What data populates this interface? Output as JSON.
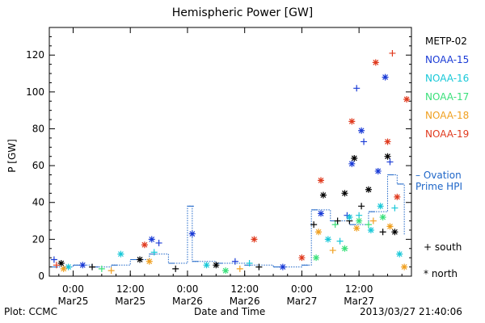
{
  "chart_data": {
    "type": "scatter",
    "title": "Hemispheric Power [GW]",
    "ylabel": "P [GW]",
    "xlabel": "Date and Time",
    "ylim": [
      0,
      135
    ],
    "xlim": [
      "2013-03-24T19:00",
      "2013-03-27T23:00"
    ],
    "y_ticks": [
      0,
      20,
      40,
      60,
      80,
      100,
      120
    ],
    "x_ticks": [
      {
        "t": "2013-03-25T00:00",
        "line1": "0:00",
        "line2": "Mar25"
      },
      {
        "t": "2013-03-25T12:00",
        "line1": "12:00",
        "line2": "Mar25"
      },
      {
        "t": "2013-03-26T00:00",
        "line1": "0:00",
        "line2": "Mar26"
      },
      {
        "t": "2013-03-26T12:00",
        "line1": "12:00",
        "line2": "Mar26"
      },
      {
        "t": "2013-03-27T00:00",
        "line1": "0:00",
        "line2": "Mar27"
      },
      {
        "t": "2013-03-27T12:00",
        "line1": "12:00",
        "line2": "Mar27"
      }
    ],
    "markers": {
      "south": "+",
      "north": "*"
    },
    "series": [
      {
        "name": "METP-02",
        "color": "#000000",
        "points": [
          {
            "t": "2013-03-24T21:30",
            "v": 7,
            "h": "north"
          },
          {
            "t": "2013-03-25T04:00",
            "v": 5,
            "h": "south"
          },
          {
            "t": "2013-03-25T14:00",
            "v": 9,
            "h": "north"
          },
          {
            "t": "2013-03-25T21:30",
            "v": 4,
            "h": "south"
          },
          {
            "t": "2013-03-26T06:00",
            "v": 6,
            "h": "north"
          },
          {
            "t": "2013-03-26T15:00",
            "v": 5,
            "h": "south"
          },
          {
            "t": "2013-03-27T02:30",
            "v": 28,
            "h": "south"
          },
          {
            "t": "2013-03-27T04:30",
            "v": 44,
            "h": "north"
          },
          {
            "t": "2013-03-27T07:30",
            "v": 30,
            "h": "south"
          },
          {
            "t": "2013-03-27T09:00",
            "v": 45,
            "h": "north"
          },
          {
            "t": "2013-03-27T10:00",
            "v": 30,
            "h": "south"
          },
          {
            "t": "2013-03-27T11:00",
            "v": 64,
            "h": "north"
          },
          {
            "t": "2013-03-27T12:30",
            "v": 38,
            "h": "south"
          },
          {
            "t": "2013-03-27T14:00",
            "v": 47,
            "h": "north"
          },
          {
            "t": "2013-03-27T17:00",
            "v": 24,
            "h": "south"
          },
          {
            "t": "2013-03-27T18:00",
            "v": 65,
            "h": "north"
          },
          {
            "t": "2013-03-27T19:30",
            "v": 24,
            "h": "north"
          }
        ]
      },
      {
        "name": "NOAA-15",
        "color": "#1a3bd6",
        "points": [
          {
            "t": "2013-03-24T20:00",
            "v": 9,
            "h": "south"
          },
          {
            "t": "2013-03-25T02:00",
            "v": 6,
            "h": "north"
          },
          {
            "t": "2013-03-25T16:30",
            "v": 20,
            "h": "north"
          },
          {
            "t": "2013-03-25T18:00",
            "v": 18,
            "h": "south"
          },
          {
            "t": "2013-03-26T01:00",
            "v": 23,
            "h": "north"
          },
          {
            "t": "2013-03-26T10:00",
            "v": 8,
            "h": "south"
          },
          {
            "t": "2013-03-26T20:00",
            "v": 5,
            "h": "north"
          },
          {
            "t": "2013-03-27T04:00",
            "v": 34,
            "h": "north"
          },
          {
            "t": "2013-03-27T09:30",
            "v": 33,
            "h": "south"
          },
          {
            "t": "2013-03-27T10:30",
            "v": 61,
            "h": "north"
          },
          {
            "t": "2013-03-27T11:30",
            "v": 102,
            "h": "south"
          },
          {
            "t": "2013-03-27T12:30",
            "v": 79,
            "h": "north"
          },
          {
            "t": "2013-03-27T13:00",
            "v": 73,
            "h": "south"
          },
          {
            "t": "2013-03-27T16:00",
            "v": 57,
            "h": "north"
          },
          {
            "t": "2013-03-27T17:30",
            "v": 108,
            "h": "north"
          },
          {
            "t": "2013-03-27T18:30",
            "v": 62,
            "h": "south"
          }
        ]
      },
      {
        "name": "NOAA-16",
        "color": "#18c8d8",
        "points": [
          {
            "t": "2013-03-24T23:00",
            "v": 5,
            "h": "north"
          },
          {
            "t": "2013-03-25T10:00",
            "v": 12,
            "h": "north"
          },
          {
            "t": "2013-03-25T17:00",
            "v": 13,
            "h": "south"
          },
          {
            "t": "2013-03-26T04:00",
            "v": 6,
            "h": "north"
          },
          {
            "t": "2013-03-26T13:00",
            "v": 7,
            "h": "south"
          },
          {
            "t": "2013-03-27T05:30",
            "v": 20,
            "h": "north"
          },
          {
            "t": "2013-03-27T08:00",
            "v": 19,
            "h": "south"
          },
          {
            "t": "2013-03-27T10:00",
            "v": 32,
            "h": "north"
          },
          {
            "t": "2013-03-27T12:00",
            "v": 33,
            "h": "south"
          },
          {
            "t": "2013-03-27T14:30",
            "v": 25,
            "h": "north"
          },
          {
            "t": "2013-03-27T16:30",
            "v": 38,
            "h": "north"
          },
          {
            "t": "2013-03-27T19:30",
            "v": 37,
            "h": "south"
          },
          {
            "t": "2013-03-27T20:30",
            "v": 12,
            "h": "north"
          }
        ]
      },
      {
        "name": "NOAA-17",
        "color": "#3ae07a",
        "points": [
          {
            "t": "2013-03-25T06:00",
            "v": 4,
            "h": "south"
          },
          {
            "t": "2013-03-26T08:00",
            "v": 3,
            "h": "north"
          },
          {
            "t": "2013-03-27T03:00",
            "v": 10,
            "h": "north"
          },
          {
            "t": "2013-03-27T07:00",
            "v": 28,
            "h": "south"
          },
          {
            "t": "2013-03-27T09:00",
            "v": 15,
            "h": "north"
          },
          {
            "t": "2013-03-27T12:00",
            "v": 30,
            "h": "north"
          },
          {
            "t": "2013-03-27T14:00",
            "v": 28,
            "h": "south"
          },
          {
            "t": "2013-03-27T17:00",
            "v": 32,
            "h": "north"
          }
        ]
      },
      {
        "name": "NOAA-18",
        "color": "#f0a020",
        "points": [
          {
            "t": "2013-03-24T22:00",
            "v": 4,
            "h": "north"
          },
          {
            "t": "2013-03-25T08:00",
            "v": 3,
            "h": "south"
          },
          {
            "t": "2013-03-25T16:00",
            "v": 8,
            "h": "north"
          },
          {
            "t": "2013-03-26T11:00",
            "v": 4,
            "h": "south"
          },
          {
            "t": "2013-03-27T03:30",
            "v": 24,
            "h": "north"
          },
          {
            "t": "2013-03-27T06:30",
            "v": 14,
            "h": "south"
          },
          {
            "t": "2013-03-27T11:30",
            "v": 26,
            "h": "north"
          },
          {
            "t": "2013-03-27T15:00",
            "v": 30,
            "h": "south"
          },
          {
            "t": "2013-03-27T18:30",
            "v": 27,
            "h": "north"
          },
          {
            "t": "2013-03-27T21:30",
            "v": 5,
            "h": "north"
          }
        ]
      },
      {
        "name": "NOAA-19",
        "color": "#e03a1e",
        "points": [
          {
            "t": "2013-03-24T20:30",
            "v": 6,
            "h": "south"
          },
          {
            "t": "2013-03-25T15:00",
            "v": 17,
            "h": "north"
          },
          {
            "t": "2013-03-26T14:00",
            "v": 20,
            "h": "north"
          },
          {
            "t": "2013-03-27T00:00",
            "v": 10,
            "h": "north"
          },
          {
            "t": "2013-03-27T04:00",
            "v": 52,
            "h": "north"
          },
          {
            "t": "2013-03-27T10:30",
            "v": 84,
            "h": "north"
          },
          {
            "t": "2013-03-27T15:30",
            "v": 116,
            "h": "north"
          },
          {
            "t": "2013-03-27T18:00",
            "v": 73,
            "h": "north"
          },
          {
            "t": "2013-03-27T19:00",
            "v": 121,
            "h": "south"
          },
          {
            "t": "2013-03-27T20:00",
            "v": 43,
            "h": "north"
          },
          {
            "t": "2013-03-27T22:00",
            "v": 96,
            "h": "north"
          }
        ]
      }
    ],
    "ovation": {
      "name": "– Ovation Prime HPI",
      "color": "#1e66c8",
      "points": [
        {
          "t": "2013-03-24T19:30",
          "v": 5
        },
        {
          "t": "2013-03-25T00:00",
          "v": 6
        },
        {
          "t": "2013-03-25T04:00",
          "v": 5
        },
        {
          "t": "2013-03-25T08:00",
          "v": 6
        },
        {
          "t": "2013-03-25T12:00",
          "v": 9
        },
        {
          "t": "2013-03-25T16:00",
          "v": 12
        },
        {
          "t": "2013-03-25T20:00",
          "v": 7
        },
        {
          "t": "2013-03-26T00:00",
          "v": 38
        },
        {
          "t": "2013-03-26T01:00",
          "v": 8
        },
        {
          "t": "2013-03-26T06:00",
          "v": 7
        },
        {
          "t": "2013-03-26T12:00",
          "v": 6
        },
        {
          "t": "2013-03-26T18:00",
          "v": 5
        },
        {
          "t": "2013-03-27T00:00",
          "v": 6
        },
        {
          "t": "2013-03-27T02:00",
          "v": 36
        },
        {
          "t": "2013-03-27T06:00",
          "v": 30
        },
        {
          "t": "2013-03-27T10:00",
          "v": 28
        },
        {
          "t": "2013-03-27T14:00",
          "v": 35
        },
        {
          "t": "2013-03-27T18:00",
          "v": 55
        },
        {
          "t": "2013-03-27T20:00",
          "v": 50
        },
        {
          "t": "2013-03-27T21:30",
          "v": 22
        }
      ]
    }
  },
  "legend": {
    "south_label": "+ south",
    "north_label": "* north"
  },
  "footer": {
    "left": "Plot: CCMC",
    "right": "2013/03/27 21:40:06"
  }
}
